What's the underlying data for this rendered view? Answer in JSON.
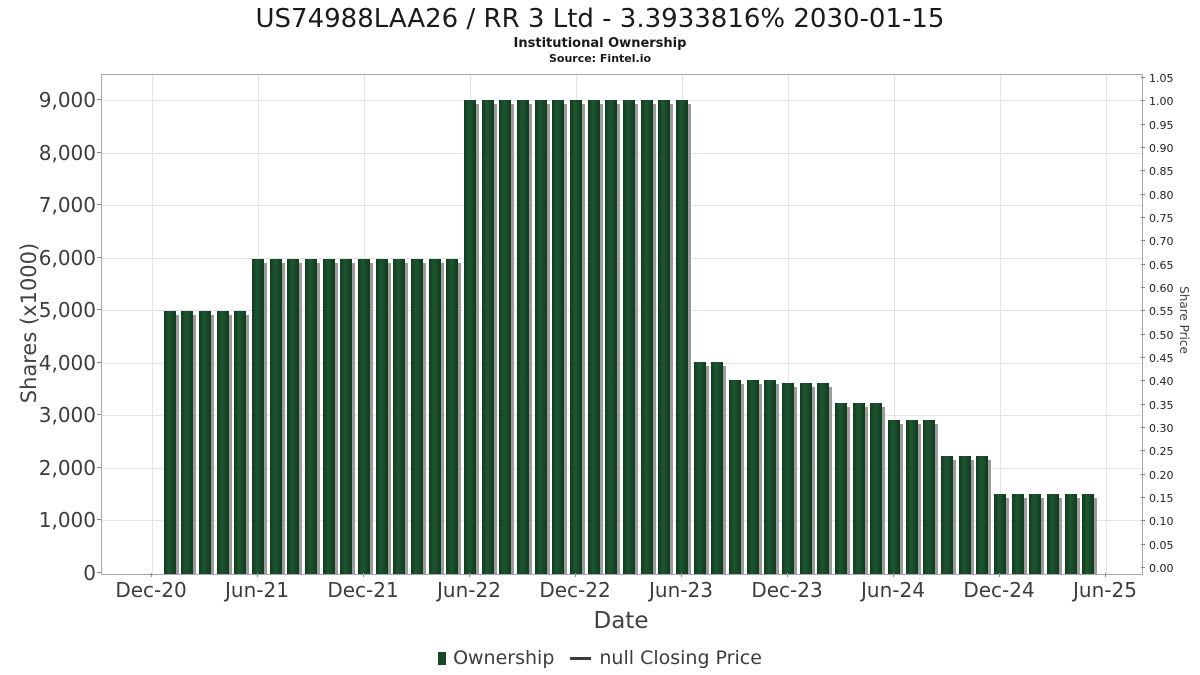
{
  "header": {
    "title": "US74988LAA26 / RR 3 Ltd - 3.3933816% 2030-01-15",
    "subtitle": "Institutional Ownership",
    "source": "Source: Fintel.io"
  },
  "axes": {
    "x_label": "Date",
    "y_left_label": "Shares (x1000)",
    "y_right_label": "Share Price"
  },
  "legend": {
    "items": [
      {
        "label": "Ownership",
        "marker": "square",
        "color": "#17482a"
      },
      {
        "label": "null Closing Price",
        "marker": "line",
        "color": "#3d3d3d"
      }
    ]
  },
  "chart_data": {
    "type": "bar",
    "title": "US74988LAA26 / RR 3 Ltd - 3.3933816% 2030-01-15",
    "subtitle": "Institutional Ownership",
    "source": "Source: Fintel.io",
    "xlabel": "Date",
    "ylabel_left": "Shares (x1000)",
    "ylabel_right": "Share Price",
    "bar_color": "#17482a",
    "grid": true,
    "legend_position": "bottom",
    "x": [
      "Jan-21",
      "Feb-21",
      "Mar-21",
      "Apr-21",
      "May-21",
      "Jun-21",
      "Jul-21",
      "Aug-21",
      "Sep-21",
      "Oct-21",
      "Nov-21",
      "Dec-21",
      "Jan-22",
      "Feb-22",
      "Mar-22",
      "Apr-22",
      "May-22",
      "Jun-22",
      "Jul-22",
      "Aug-22",
      "Sep-22",
      "Oct-22",
      "Nov-22",
      "Dec-22",
      "Jan-23",
      "Feb-23",
      "Mar-23",
      "Apr-23",
      "May-23",
      "Jun-23",
      "Jul-23",
      "Aug-23",
      "Sep-23",
      "Oct-23",
      "Nov-23",
      "Dec-23",
      "Jan-24",
      "Feb-24",
      "Mar-24",
      "Apr-24",
      "May-24",
      "Jun-24",
      "Jul-24",
      "Aug-24",
      "Sep-24",
      "Oct-24",
      "Nov-24",
      "Dec-24",
      "Jan-25",
      "Feb-25",
      "Mar-25",
      "Apr-25",
      "May-25"
    ],
    "series": [
      {
        "name": "Ownership",
        "values": [
          5000,
          5000,
          5000,
          5000,
          5000,
          6000,
          6000,
          6000,
          6000,
          6000,
          6000,
          6000,
          6000,
          6000,
          6000,
          6000,
          6000,
          9020,
          9020,
          9020,
          9020,
          9020,
          9020,
          9020,
          9020,
          9020,
          9020,
          9020,
          9020,
          9020,
          4030,
          4030,
          3700,
          3700,
          3700,
          3630,
          3630,
          3630,
          3250,
          3250,
          3250,
          2940,
          2940,
          2940,
          2250,
          2250,
          2250,
          1520,
          1520,
          1520,
          1520,
          1520,
          1520
        ]
      },
      {
        "name": "null Closing Price",
        "values": []
      }
    ],
    "x_ticks": [
      "Dec-20",
      "Jun-21",
      "Dec-21",
      "Jun-22",
      "Dec-22",
      "Jun-23",
      "Dec-23",
      "Jun-24",
      "Dec-24",
      "Jun-25"
    ],
    "y_left_ticks": [
      {
        "value": 0,
        "label": "0"
      },
      {
        "value": 1000,
        "label": "1,000"
      },
      {
        "value": 2000,
        "label": "2,000"
      },
      {
        "value": 3000,
        "label": "3,000"
      },
      {
        "value": 4000,
        "label": "4,000"
      },
      {
        "value": 5000,
        "label": "5,000"
      },
      {
        "value": 6000,
        "label": "6,000"
      },
      {
        "value": 7000,
        "label": "7,000"
      },
      {
        "value": 8000,
        "label": "8,000"
      },
      {
        "value": 9000,
        "label": "9,000"
      }
    ],
    "y_right_ticks": [
      "1.05",
      "1.00",
      "0.95",
      "0.90",
      "0.85",
      "0.80",
      "0.75",
      "0.70",
      "0.65",
      "0.60",
      "0.55",
      "0.50",
      "0.45",
      "0.40",
      "0.35",
      "0.30",
      "0.25",
      "0.20",
      "0.15",
      "0.10",
      "0.05",
      "0.00"
    ],
    "ylim_left": [
      0,
      9500
    ],
    "ylim_right": [
      0.0,
      1.05
    ]
  }
}
